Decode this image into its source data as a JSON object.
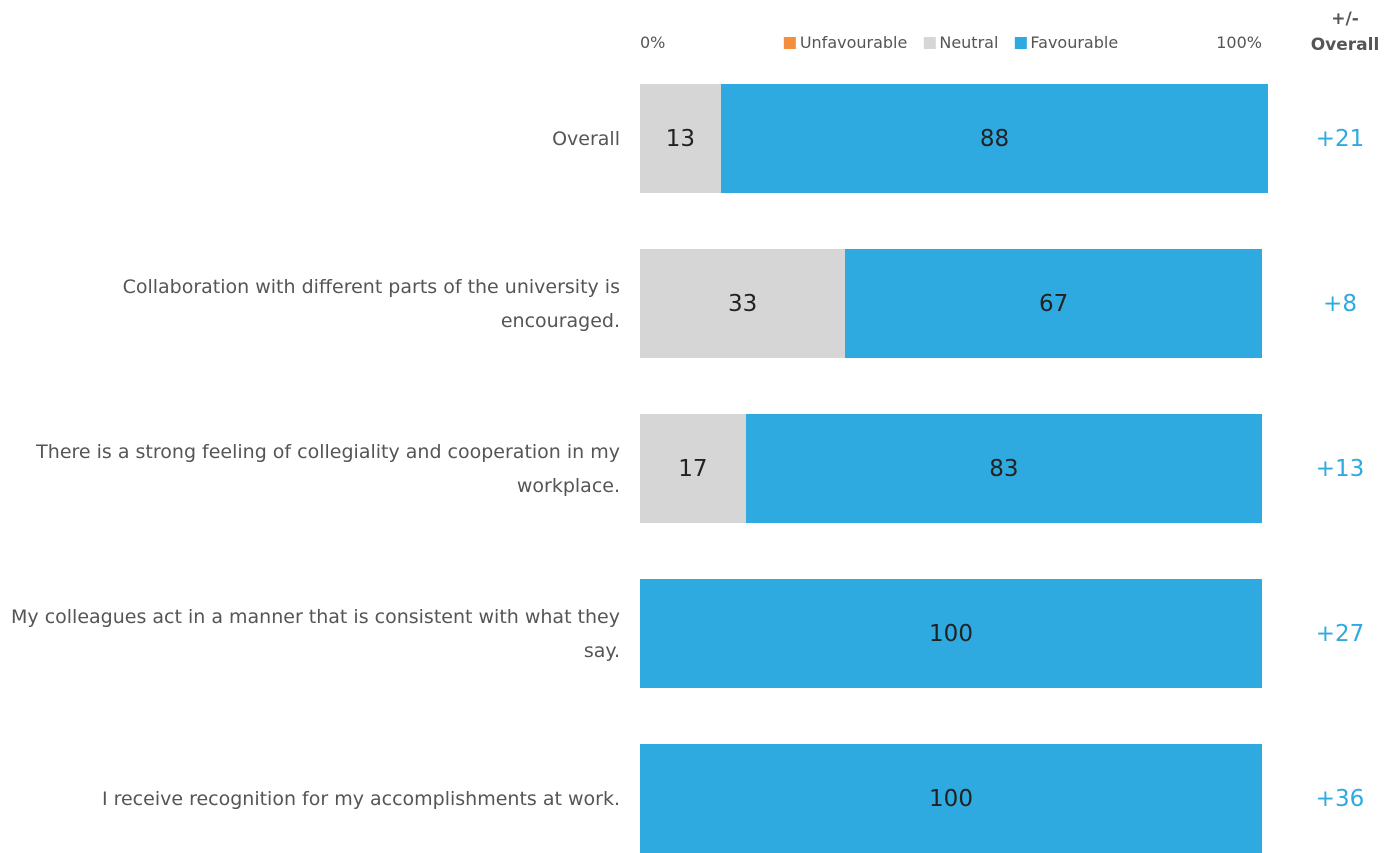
{
  "chart_data": {
    "type": "stacked-bar",
    "categories": [
      "Overall",
      "Collaboration with different parts of the university is encouraged.",
      "There is a strong feeling of collegiality and cooperation in my workplace.",
      "My colleagues act in a manner that is consistent with what they say.",
      "I receive recognition for my accomplishments at work."
    ],
    "series": [
      {
        "name": "Unfavourable",
        "color": "#f28e3c",
        "values": [
          0,
          0,
          0,
          0,
          0
        ]
      },
      {
        "name": "Neutral",
        "color": "#d6d6d6",
        "values": [
          13,
          33,
          17,
          0,
          0
        ]
      },
      {
        "name": "Favourable",
        "color": "#2eaae1",
        "values": [
          88,
          67,
          83,
          100,
          100
        ]
      }
    ],
    "xlim": [
      0,
      100
    ],
    "xticks": [
      {
        "value": 0,
        "label": "0%"
      },
      {
        "value": 100,
        "label": "100%"
      }
    ],
    "legend": "top",
    "difference": {
      "title": "+/-\nOverall",
      "color": "#2eaae1",
      "values": [
        21,
        8,
        13,
        27,
        36
      ],
      "value_labels": [
        "+21",
        "+8",
        "+13",
        "+27",
        "+36"
      ]
    }
  }
}
